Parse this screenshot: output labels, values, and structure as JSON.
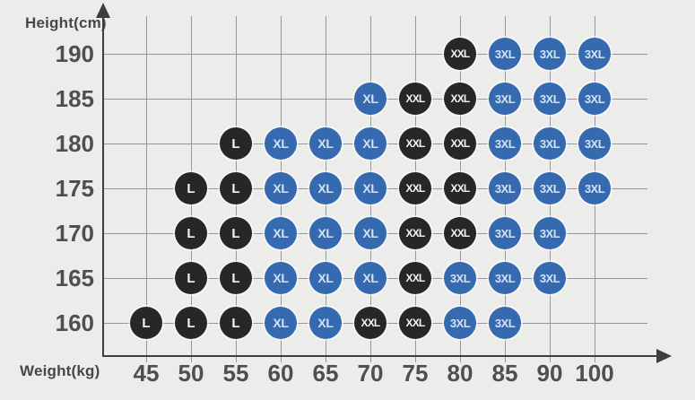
{
  "chart_data": {
    "type": "scatter",
    "title": "",
    "xlabel": "Weight(kg)",
    "ylabel": "Height(cm)",
    "x_ticks": [
      45,
      50,
      55,
      60,
      65,
      70,
      75,
      80,
      85,
      90,
      100
    ],
    "y_ticks": [
      190,
      185,
      180,
      175,
      170,
      165,
      160
    ],
    "legend": "none",
    "grid": "on",
    "sizes": [
      "L",
      "XL",
      "XXL",
      "3XL"
    ],
    "colors": {
      "background": "#ececea",
      "dark_circle": "#272727",
      "blue_circle": "#3569b0",
      "dark_text": "#f4f4f4",
      "blue_text": "#d3e3f6",
      "size_color_map": {
        "L": "dark",
        "XL": "blue",
        "XXL": "dark",
        "3XL": "blue"
      }
    },
    "points": [
      {
        "height": 190,
        "weight": 80,
        "size": "XXL"
      },
      {
        "height": 190,
        "weight": 85,
        "size": "3XL"
      },
      {
        "height": 190,
        "weight": 90,
        "size": "3XL"
      },
      {
        "height": 190,
        "weight": 100,
        "size": "3XL"
      },
      {
        "height": 185,
        "weight": 70,
        "size": "XL"
      },
      {
        "height": 185,
        "weight": 75,
        "size": "XXL"
      },
      {
        "height": 185,
        "weight": 80,
        "size": "XXL"
      },
      {
        "height": 185,
        "weight": 85,
        "size": "3XL"
      },
      {
        "height": 185,
        "weight": 90,
        "size": "3XL"
      },
      {
        "height": 185,
        "weight": 100,
        "size": "3XL"
      },
      {
        "height": 180,
        "weight": 55,
        "size": "L"
      },
      {
        "height": 180,
        "weight": 60,
        "size": "XL"
      },
      {
        "height": 180,
        "weight": 65,
        "size": "XL"
      },
      {
        "height": 180,
        "weight": 70,
        "size": "XL"
      },
      {
        "height": 180,
        "weight": 75,
        "size": "XXL"
      },
      {
        "height": 180,
        "weight": 80,
        "size": "XXL"
      },
      {
        "height": 180,
        "weight": 85,
        "size": "3XL"
      },
      {
        "height": 180,
        "weight": 90,
        "size": "3XL"
      },
      {
        "height": 180,
        "weight": 100,
        "size": "3XL"
      },
      {
        "height": 175,
        "weight": 50,
        "size": "L"
      },
      {
        "height": 175,
        "weight": 55,
        "size": "L"
      },
      {
        "height": 175,
        "weight": 60,
        "size": "XL"
      },
      {
        "height": 175,
        "weight": 65,
        "size": "XL"
      },
      {
        "height": 175,
        "weight": 70,
        "size": "XL"
      },
      {
        "height": 175,
        "weight": 75,
        "size": "XXL"
      },
      {
        "height": 175,
        "weight": 80,
        "size": "XXL"
      },
      {
        "height": 175,
        "weight": 85,
        "size": "3XL"
      },
      {
        "height": 175,
        "weight": 90,
        "size": "3XL"
      },
      {
        "height": 175,
        "weight": 100,
        "size": "3XL"
      },
      {
        "height": 170,
        "weight": 50,
        "size": "L"
      },
      {
        "height": 170,
        "weight": 55,
        "size": "L"
      },
      {
        "height": 170,
        "weight": 60,
        "size": "XL"
      },
      {
        "height": 170,
        "weight": 65,
        "size": "XL"
      },
      {
        "height": 170,
        "weight": 70,
        "size": "XL"
      },
      {
        "height": 170,
        "weight": 75,
        "size": "XXL"
      },
      {
        "height": 170,
        "weight": 80,
        "size": "XXL"
      },
      {
        "height": 170,
        "weight": 85,
        "size": "3XL"
      },
      {
        "height": 170,
        "weight": 90,
        "size": "3XL"
      },
      {
        "height": 165,
        "weight": 50,
        "size": "L"
      },
      {
        "height": 165,
        "weight": 55,
        "size": "L"
      },
      {
        "height": 165,
        "weight": 60,
        "size": "XL"
      },
      {
        "height": 165,
        "weight": 65,
        "size": "XL"
      },
      {
        "height": 165,
        "weight": 70,
        "size": "XL"
      },
      {
        "height": 165,
        "weight": 75,
        "size": "XXL"
      },
      {
        "height": 165,
        "weight": 80,
        "size": "3XL"
      },
      {
        "height": 165,
        "weight": 85,
        "size": "3XL"
      },
      {
        "height": 165,
        "weight": 90,
        "size": "3XL"
      },
      {
        "height": 160,
        "weight": 45,
        "size": "L"
      },
      {
        "height": 160,
        "weight": 50,
        "size": "L"
      },
      {
        "height": 160,
        "weight": 55,
        "size": "L"
      },
      {
        "height": 160,
        "weight": 60,
        "size": "XL"
      },
      {
        "height": 160,
        "weight": 65,
        "size": "XL"
      },
      {
        "height": 160,
        "weight": 70,
        "size": "XXL"
      },
      {
        "height": 160,
        "weight": 75,
        "size": "XXL"
      },
      {
        "height": 160,
        "weight": 80,
        "size": "3XL"
      },
      {
        "height": 160,
        "weight": 85,
        "size": "3XL"
      }
    ]
  }
}
